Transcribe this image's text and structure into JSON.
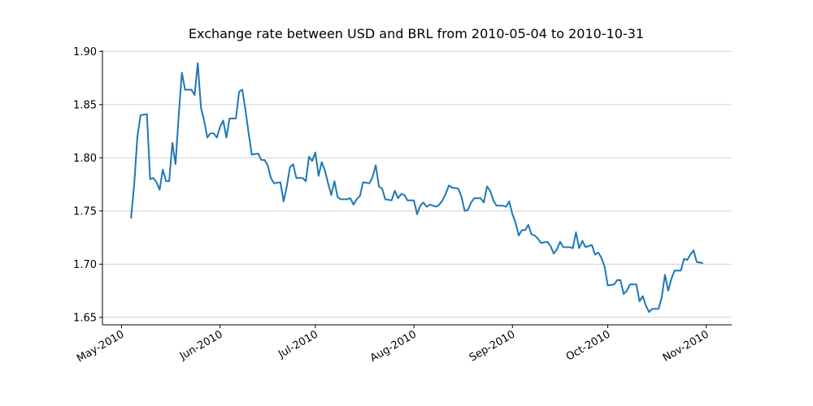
{
  "chart_data": {
    "type": "line",
    "title": "Exchange rate between USD and BRL from 2010-05-04 to 2010-10-31",
    "x": [
      "2010-05-04",
      "2010-05-05",
      "2010-05-06",
      "2010-05-07",
      "2010-05-09",
      "2010-05-10",
      "2010-05-11",
      "2010-05-12",
      "2010-05-13",
      "2010-05-14",
      "2010-05-15",
      "2010-05-16",
      "2010-05-17",
      "2010-05-18",
      "2010-05-19",
      "2010-05-20",
      "2010-05-21",
      "2010-05-23",
      "2010-05-24",
      "2010-05-25",
      "2010-05-26",
      "2010-05-27",
      "2010-05-28",
      "2010-05-29",
      "2010-05-30",
      "2010-05-31",
      "2010-06-01",
      "2010-06-02",
      "2010-06-03",
      "2010-06-04",
      "2010-06-06",
      "2010-06-07",
      "2010-06-08",
      "2010-06-09",
      "2010-06-10",
      "2010-06-11",
      "2010-06-13",
      "2010-06-14",
      "2010-06-15",
      "2010-06-16",
      "2010-06-17",
      "2010-06-18",
      "2010-06-20",
      "2010-06-21",
      "2010-06-22",
      "2010-06-23",
      "2010-06-24",
      "2010-06-25",
      "2010-06-27",
      "2010-06-28",
      "2010-06-29",
      "2010-06-30",
      "2010-07-01",
      "2010-07-02",
      "2010-07-03",
      "2010-07-04",
      "2010-07-05",
      "2010-07-06",
      "2010-07-07",
      "2010-07-08",
      "2010-07-09",
      "2010-07-11",
      "2010-07-12",
      "2010-07-13",
      "2010-07-14",
      "2010-07-15",
      "2010-07-16",
      "2010-07-18",
      "2010-07-19",
      "2010-07-20",
      "2010-07-21",
      "2010-07-22",
      "2010-07-23",
      "2010-07-25",
      "2010-07-26",
      "2010-07-27",
      "2010-07-28",
      "2010-07-29",
      "2010-07-30",
      "2010-08-01",
      "2010-08-02",
      "2010-08-03",
      "2010-08-04",
      "2010-08-05",
      "2010-08-06",
      "2010-08-08",
      "2010-08-09",
      "2010-08-10",
      "2010-08-11",
      "2010-08-12",
      "2010-08-13",
      "2010-08-15",
      "2010-08-16",
      "2010-08-17",
      "2010-08-18",
      "2010-08-19",
      "2010-08-20",
      "2010-08-22",
      "2010-08-23",
      "2010-08-24",
      "2010-08-25",
      "2010-08-26",
      "2010-08-27",
      "2010-08-29",
      "2010-08-30",
      "2010-08-31",
      "2010-09-01",
      "2010-09-02",
      "2010-09-03",
      "2010-09-04",
      "2010-09-05",
      "2010-09-06",
      "2010-09-07",
      "2010-09-08",
      "2010-09-09",
      "2010-09-10",
      "2010-09-12",
      "2010-09-13",
      "2010-09-14",
      "2010-09-15",
      "2010-09-16",
      "2010-09-17",
      "2010-09-19",
      "2010-09-20",
      "2010-09-21",
      "2010-09-22",
      "2010-09-23",
      "2010-09-24",
      "2010-09-26",
      "2010-09-27",
      "2010-09-28",
      "2010-09-29",
      "2010-09-30",
      "2010-10-01",
      "2010-10-03",
      "2010-10-04",
      "2010-10-05",
      "2010-10-06",
      "2010-10-07",
      "2010-10-08",
      "2010-10-10",
      "2010-10-11",
      "2010-10-12",
      "2010-10-13",
      "2010-10-14",
      "2010-10-15",
      "2010-10-17",
      "2010-10-18",
      "2010-10-19",
      "2010-10-20",
      "2010-10-21",
      "2010-10-22",
      "2010-10-24",
      "2010-10-25",
      "2010-10-26",
      "2010-10-27",
      "2010-10-28",
      "2010-10-29",
      "2010-10-31"
    ],
    "series": [
      {
        "color": "#1f77b4",
        "values": [
          1.743,
          1.775,
          1.82,
          1.84,
          1.841,
          1.78,
          1.781,
          1.777,
          1.77,
          1.789,
          1.778,
          1.778,
          1.814,
          1.794,
          1.84,
          1.88,
          1.864,
          1.864,
          1.859,
          1.889,
          1.847,
          1.835,
          1.819,
          1.823,
          1.823,
          1.819,
          1.829,
          1.835,
          1.819,
          1.837,
          1.837,
          1.862,
          1.864,
          1.845,
          1.823,
          1.803,
          1.804,
          1.798,
          1.798,
          1.793,
          1.781,
          1.776,
          1.777,
          1.759,
          1.773,
          1.791,
          1.794,
          1.781,
          1.781,
          1.778,
          1.801,
          1.797,
          1.805,
          1.783,
          1.796,
          1.788,
          1.776,
          1.765,
          1.778,
          1.763,
          1.761,
          1.761,
          1.762,
          1.756,
          1.761,
          1.764,
          1.777,
          1.776,
          1.782,
          1.793,
          1.773,
          1.771,
          1.761,
          1.76,
          1.769,
          1.762,
          1.766,
          1.765,
          1.76,
          1.76,
          1.747,
          1.755,
          1.758,
          1.754,
          1.756,
          1.754,
          1.756,
          1.76,
          1.766,
          1.774,
          1.772,
          1.771,
          1.763,
          1.75,
          1.751,
          1.758,
          1.762,
          1.762,
          1.758,
          1.773,
          1.769,
          1.76,
          1.755,
          1.755,
          1.754,
          1.759,
          1.747,
          1.739,
          1.727,
          1.732,
          1.732,
          1.737,
          1.728,
          1.727,
          1.724,
          1.72,
          1.721,
          1.717,
          1.71,
          1.714,
          1.721,
          1.716,
          1.716,
          1.715,
          1.73,
          1.715,
          1.722,
          1.716,
          1.718,
          1.709,
          1.711,
          1.706,
          1.698,
          1.68,
          1.681,
          1.685,
          1.685,
          1.672,
          1.675,
          1.681,
          1.681,
          1.665,
          1.67,
          1.661,
          1.655,
          1.658,
          1.658,
          1.669,
          1.69,
          1.675,
          1.686,
          1.694,
          1.694,
          1.705,
          1.704,
          1.709,
          1.713,
          1.702,
          1.701
        ]
      }
    ],
    "xlim": [
      "2010-04-25",
      "2010-11-09"
    ],
    "xticks": [
      {
        "value": "2010-05-01",
        "label": "May-2010"
      },
      {
        "value": "2010-06-01",
        "label": "Jun-2010"
      },
      {
        "value": "2010-07-01",
        "label": "Jul-2010"
      },
      {
        "value": "2010-08-01",
        "label": "Aug-2010"
      },
      {
        "value": "2010-09-01",
        "label": "Sep-2010"
      },
      {
        "value": "2010-10-01",
        "label": "Oct-2010"
      },
      {
        "value": "2010-11-01",
        "label": "Nov-2010"
      }
    ],
    "ylim": [
      1.643,
      1.901
    ],
    "yticks": [
      {
        "value": 1.65,
        "label": "1.65"
      },
      {
        "value": 1.7,
        "label": "1.70"
      },
      {
        "value": 1.75,
        "label": "1.75"
      },
      {
        "value": 1.8,
        "label": "1.80"
      },
      {
        "value": 1.85,
        "label": "1.85"
      },
      {
        "value": 1.9,
        "label": "1.90"
      }
    ],
    "grid": "y"
  }
}
